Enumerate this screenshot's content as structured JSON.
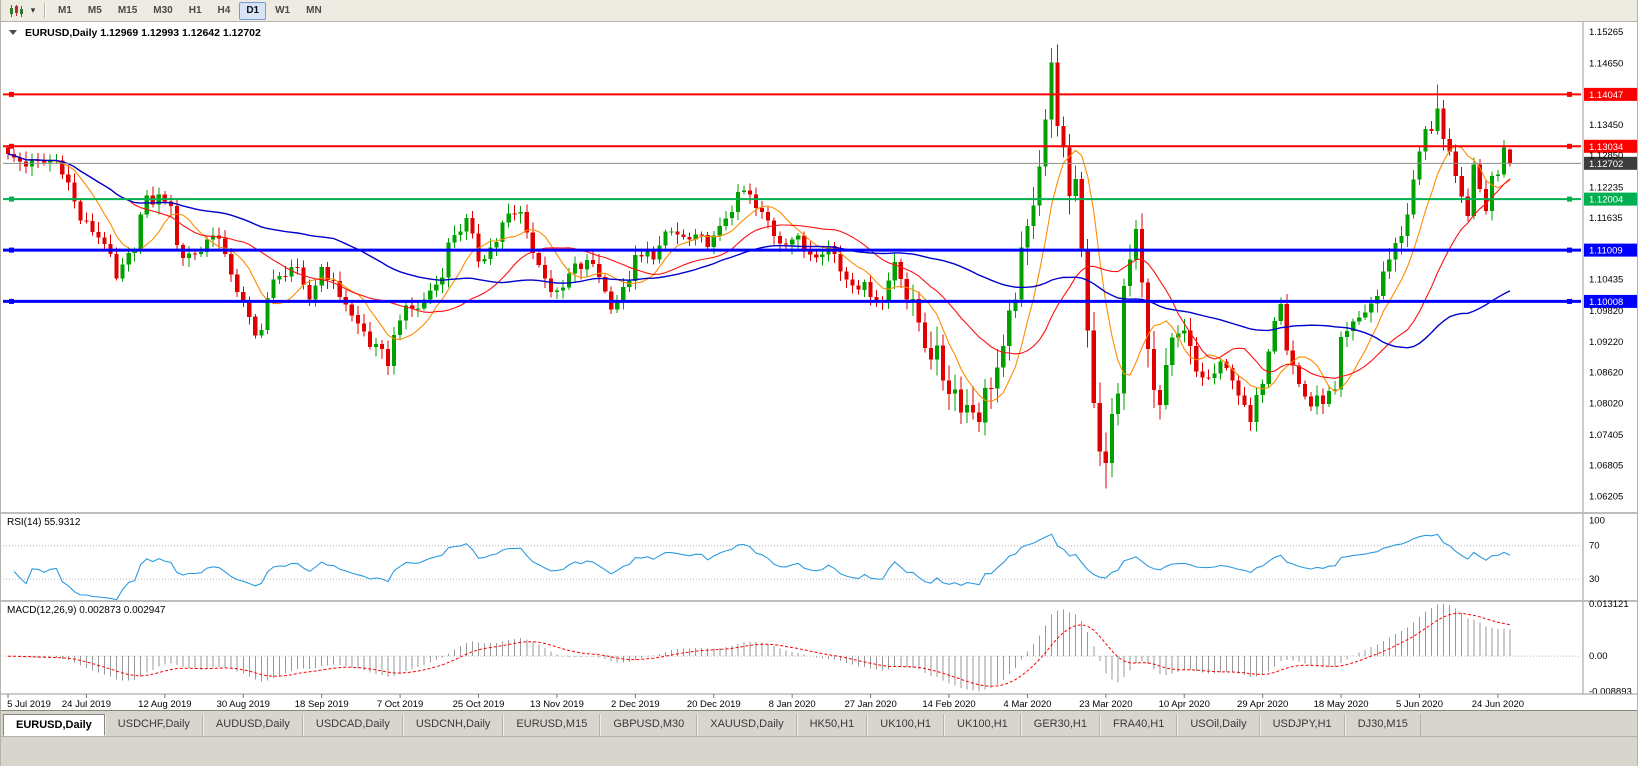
{
  "toolbar": {
    "dropdown_caret": "▾",
    "timeframes": [
      "M1",
      "M5",
      "M15",
      "M30",
      "H1",
      "H4",
      "D1",
      "W1",
      "MN"
    ],
    "active_timeframe": "D1"
  },
  "chart": {
    "title": "EURUSD,Daily",
    "quote": "1.12969 1.12993 1.12642 1.12702"
  },
  "chart_data": {
    "type": "candlestick",
    "symbol": "EURUSD",
    "period": "Daily",
    "ohlc": {
      "open": "1.12969",
      "high": "1.12993",
      "low": "1.12642",
      "close": "1.12702"
    },
    "bars": 250,
    "price_scale": {
      "top": 1.1542,
      "bottom": 1.059
    },
    "y_axis_labels": [
      "1.15265",
      "1.14650",
      "1.13450",
      "1.12850",
      "1.12235",
      "1.11635",
      "1.10435",
      "1.09820",
      "1.09220",
      "1.08620",
      "1.08020",
      "1.07405",
      "1.06805",
      "1.06205"
    ],
    "x_axis_labels": [
      {
        "i": 0,
        "label": "5 Jul 2019"
      },
      {
        "i": 13,
        "label": "24 Jul 2019"
      },
      {
        "i": 26,
        "label": "12 Aug 2019"
      },
      {
        "i": 39,
        "label": "30 Aug 2019"
      },
      {
        "i": 52,
        "label": "18 Sep 2019"
      },
      {
        "i": 65,
        "label": "7 Oct 2019"
      },
      {
        "i": 78,
        "label": "25 Oct 2019"
      },
      {
        "i": 91,
        "label": "13 Nov 2019"
      },
      {
        "i": 104,
        "label": "2 Dec 2019"
      },
      {
        "i": 117,
        "label": "20 Dec 2019"
      },
      {
        "i": 130,
        "label": "8 Jan 2020"
      },
      {
        "i": 143,
        "label": "27 Jan 2020"
      },
      {
        "i": 156,
        "label": "14 Feb 2020"
      },
      {
        "i": 169,
        "label": "4 Mar 2020"
      },
      {
        "i": 182,
        "label": "23 Mar 2020"
      },
      {
        "i": 195,
        "label": "10 Apr 2020"
      },
      {
        "i": 208,
        "label": "29 Apr 2020"
      },
      {
        "i": 221,
        "label": "18 May 2020"
      },
      {
        "i": 234,
        "label": "5 Jun 2020"
      },
      {
        "i": 247,
        "label": "24 Jun 2020"
      }
    ],
    "hlines": [
      {
        "price": 1.14047,
        "label": "1.14047",
        "color": "#FF0000",
        "width": 2
      },
      {
        "price": 1.13034,
        "label": "1.13034",
        "color": "#FF0000",
        "width": 2
      },
      {
        "price": 1.12004,
        "label": "1.12004",
        "color": "#00B050",
        "width": 2
      },
      {
        "price": 1.11009,
        "label": "1.11009",
        "color": "#0000FF",
        "width": 3
      },
      {
        "price": 1.10008,
        "label": "1.10008",
        "color": "#0000FF",
        "width": 3
      }
    ],
    "current_price": {
      "value": 1.12702,
      "label": "1.12702"
    },
    "anchors": [
      [
        0,
        1.1282
      ],
      [
        4,
        1.1268
      ],
      [
        8,
        1.1275
      ],
      [
        13,
        1.1148
      ],
      [
        16,
        1.112
      ],
      [
        18,
        1.104
      ],
      [
        20,
        1.1085
      ],
      [
        23,
        1.1195
      ],
      [
        26,
        1.1205
      ],
      [
        29,
        1.109
      ],
      [
        32,
        1.11
      ],
      [
        34,
        1.114
      ],
      [
        37,
        1.106
      ],
      [
        39,
        1.0992
      ],
      [
        41,
        1.093
      ],
      [
        44,
        1.1035
      ],
      [
        47,
        1.107
      ],
      [
        50,
        1.1005
      ],
      [
        52,
        1.1068
      ],
      [
        55,
        1.1015
      ],
      [
        58,
        1.0955
      ],
      [
        61,
        1.0905
      ],
      [
        63,
        1.0885
      ],
      [
        65,
        1.0975
      ],
      [
        68,
        1.099
      ],
      [
        71,
        1.1035
      ],
      [
        74,
        1.1135
      ],
      [
        76,
        1.1155
      ],
      [
        78,
        1.1085
      ],
      [
        80,
        1.1105
      ],
      [
        83,
        1.1165
      ],
      [
        85,
        1.1172
      ],
      [
        88,
        1.107
      ],
      [
        91,
        1.101
      ],
      [
        94,
        1.1065
      ],
      [
        97,
        1.1075
      ],
      [
        100,
        1.0998
      ],
      [
        102,
        1.1018
      ],
      [
        104,
        1.108
      ],
      [
        107,
        1.1095
      ],
      [
        110,
        1.1135
      ],
      [
        113,
        1.1118
      ],
      [
        117,
        1.112
      ],
      [
        120,
        1.1185
      ],
      [
        122,
        1.1215
      ],
      [
        125,
        1.1168
      ],
      [
        128,
        1.1122
      ],
      [
        130,
        1.1125
      ],
      [
        133,
        1.1098
      ],
      [
        136,
        1.1108
      ],
      [
        139,
        1.1048
      ],
      [
        143,
        1.1022
      ],
      [
        145,
        1.1002
      ],
      [
        147,
        1.1082
      ],
      [
        150,
        1.0982
      ],
      [
        153,
        1.0905
      ],
      [
        156,
        1.0838
      ],
      [
        159,
        1.0798
      ],
      [
        161,
        1.0785
      ],
      [
        163,
        1.0848
      ],
      [
        165,
        1.0892
      ],
      [
        167,
        1.1025
      ],
      [
        169,
        1.1135
      ],
      [
        171,
        1.1282
      ],
      [
        172,
        1.136
      ],
      [
        173,
        1.145
      ],
      [
        174,
        1.1365
      ],
      [
        175,
        1.1282
      ],
      [
        176,
        1.1182
      ],
      [
        177,
        1.125
      ],
      [
        178,
        1.1105
      ],
      [
        179,
        1.096
      ],
      [
        180,
        1.0815
      ],
      [
        181,
        1.0722
      ],
      [
        182,
        1.0672
      ],
      [
        183,
        1.0772
      ],
      [
        184,
        1.0835
      ],
      [
        185,
        1.1015
      ],
      [
        186,
        1.1082
      ],
      [
        187,
        1.1135
      ],
      [
        188,
        1.1025
      ],
      [
        189,
        1.0935
      ],
      [
        190,
        1.0812
      ],
      [
        191,
        1.0792
      ],
      [
        193,
        1.0912
      ],
      [
        195,
        1.0932
      ],
      [
        197,
        1.0862
      ],
      [
        199,
        1.0848
      ],
      [
        201,
        1.0872
      ],
      [
        203,
        1.0858
      ],
      [
        205,
        1.0788
      ],
      [
        206,
        1.0762
      ],
      [
        208,
        1.0852
      ],
      [
        210,
        1.0975
      ],
      [
        211,
        1.1008
      ],
      [
        212,
        1.0912
      ],
      [
        214,
        1.0838
      ],
      [
        216,
        1.0798
      ],
      [
        218,
        1.0812
      ],
      [
        220,
        1.0822
      ],
      [
        221,
        1.0918
      ],
      [
        223,
        1.0952
      ],
      [
        225,
        1.0982
      ],
      [
        227,
        1.1012
      ],
      [
        229,
        1.1092
      ],
      [
        231,
        1.1132
      ],
      [
        233,
        1.1228
      ],
      [
        234,
        1.1292
      ],
      [
        235,
        1.1328
      ],
      [
        236,
        1.1342
      ],
      [
        237,
        1.1385
      ],
      [
        238,
        1.1315
      ],
      [
        239,
        1.1278
      ],
      [
        240,
        1.1232
      ],
      [
        241,
        1.1198
      ],
      [
        242,
        1.1182
      ],
      [
        243,
        1.1252
      ],
      [
        244,
        1.1218
      ],
      [
        245,
        1.1188
      ],
      [
        246,
        1.1238
      ],
      [
        247,
        1.1258
      ],
      [
        248,
        1.1312
      ],
      [
        249,
        1.12702
      ]
    ],
    "noise_amp": 0.0014,
    "volatility_zones": [
      [
        150,
        196,
        2.0
      ],
      [
        229,
        249,
        1.2
      ]
    ],
    "wick_overrides": {
      "173": {
        "h": 1.1495
      },
      "182": {
        "l": 1.0636
      },
      "237": {
        "h": 1.1424
      },
      "249": {
        "o": 1.12969,
        "h": 1.12993,
        "l": 1.12642,
        "c": 1.12702
      }
    },
    "moving_averages": [
      {
        "name": "ma-fast-orange",
        "period": 8,
        "color": "#FF8C00",
        "width": 1.1
      },
      {
        "name": "ma-mid-red",
        "period": 21,
        "color": "#FF1010",
        "width": 1.1
      },
      {
        "name": "ma-slow-blue",
        "period": 55,
        "color": "#0000CD",
        "width": 1.4
      }
    ],
    "colors": {
      "up": "#00A000",
      "down": "#E00000",
      "current_badge": "#3C3C3C",
      "axis_line": "#9a9a9a",
      "pane_separator": "#BDBDBD",
      "dotted": "#B4B4B4",
      "macd_hist": "#9A9A9A",
      "macd_signal": "#FF0000",
      "current_line": "#8C8C8C"
    },
    "rsi": {
      "label": "RSI(14) 55.9312",
      "period": 14,
      "color": "#2E9BE0",
      "axis_labels": [
        {
          "v": 100,
          "t": "100"
        },
        {
          "v": 70,
          "t": "70"
        },
        {
          "v": 30,
          "t": "30"
        }
      ],
      "dotted_levels": [
        70,
        30
      ],
      "range": [
        5,
        108
      ]
    },
    "macd": {
      "label": "MACD(12,26,9) 0.002873 0.002947",
      "fast": 12,
      "slow": 26,
      "signal_period": 9,
      "axis_labels": [
        {
          "v": 0.013121,
          "t": "0.013121"
        },
        {
          "v": 0,
          "t": "0.00"
        },
        {
          "v": -0.008893,
          "t": "-0.008893"
        }
      ],
      "range": [
        -0.0095,
        0.0136
      ],
      "pos_max": 0.0131,
      "neg_min": -0.0089
    }
  },
  "tabs": {
    "items": [
      "EURUSD,Daily",
      "USDCHF,Daily",
      "AUDUSD,Daily",
      "USDCAD,Daily",
      "USDCNH,Daily",
      "EURUSD,M15",
      "GBPUSD,M30",
      "XAUUSD,Daily",
      "HK50,H1",
      "UK100,H1",
      "UK100,H1",
      "GER30,H1",
      "FRA40,H1",
      "USOil,Daily",
      "USDJPY,H1",
      "DJ30,M15"
    ],
    "active_index": 0
  }
}
